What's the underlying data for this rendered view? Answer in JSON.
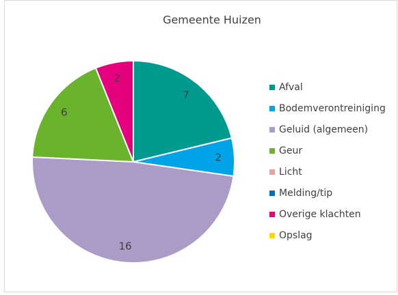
{
  "chart_data": {
    "type": "pie",
    "title": "Gemeente Huizen",
    "categories": [
      "Afval",
      "Bodemverontreiniging",
      "Geluid (algemeen)",
      "Geur",
      "Licht",
      "Melding/tip",
      "Overige klachten",
      "Opslag"
    ],
    "values": [
      7,
      2,
      16,
      6,
      0,
      0,
      2,
      0
    ],
    "colors": [
      "#009a8f",
      "#00a2e8",
      "#ab9cc7",
      "#6ab42d",
      "#e8a09a",
      "#0070c0",
      "#e6007e",
      "#ffd700"
    ],
    "legend": "right"
  }
}
